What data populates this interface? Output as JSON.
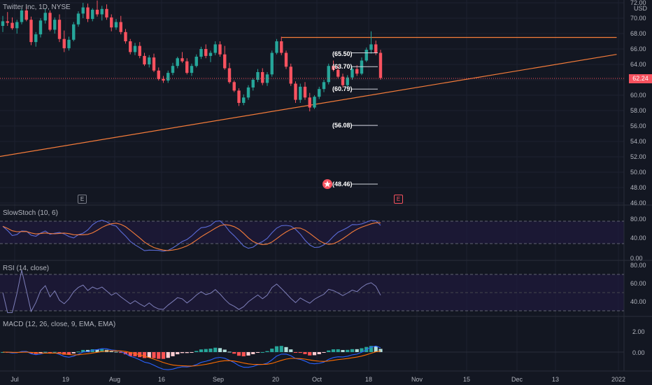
{
  "header": {
    "symbol": "Twitter Inc",
    "interval": "1D",
    "exchange": "NYSE",
    "currency": "USD"
  },
  "price_axis": [
    "72.00",
    "70.00",
    "68.00",
    "66.00",
    "64.00",
    "62.00",
    "60.00",
    "58.00",
    "56.00",
    "54.00",
    "52.00",
    "50.00",
    "48.00",
    "46.00"
  ],
  "current_price": "62.24",
  "levels": [
    "(65.50)",
    "(63.70)",
    "(60.79)",
    "(56.08)",
    "(48.46)"
  ],
  "event_markers": [
    "E",
    "E"
  ],
  "x_axis": [
    "Jul",
    "19",
    "Aug",
    "16",
    "Sep",
    "20",
    "Oct",
    "18",
    "Nov",
    "15",
    "Dec",
    "13",
    "2022"
  ],
  "panes": {
    "stoch": {
      "label": "SlowStoch (10, 6)",
      "axis": [
        "80.00",
        "40.00",
        "0.00"
      ]
    },
    "rsi": {
      "label": "RSI (14, close)",
      "axis": [
        "80.00",
        "60.00",
        "40.00"
      ]
    },
    "macd": {
      "label": "MACD (12, 26, close, 9, EMA, EMA)",
      "axis": [
        "2.00",
        "0.00"
      ]
    }
  },
  "colors": {
    "background": "#131722",
    "up": "#26a69a",
    "down": "#f7525f",
    "trendline": "#f57c3a",
    "stoch_k": "#5b6bd6",
    "stoch_d": "#f57c3a",
    "rsi": "#7e7fba"
  },
  "chart_data": {
    "type": "candlestick",
    "y_range": [
      46,
      72
    ],
    "candles": [
      [
        69.0,
        70.3,
        68.2,
        69.6
      ],
      [
        69.6,
        70.8,
        69.0,
        69.4
      ],
      [
        69.4,
        70.1,
        68.5,
        68.7
      ],
      [
        68.7,
        69.8,
        68.0,
        69.5
      ],
      [
        69.5,
        71.3,
        69.2,
        71.0
      ],
      [
        71.0,
        71.5,
        69.6,
        69.8
      ],
      [
        69.8,
        70.2,
        66.5,
        66.9
      ],
      [
        66.9,
        68.2,
        66.3,
        67.9
      ],
      [
        67.9,
        70.0,
        67.5,
        69.7
      ],
      [
        69.7,
        71.2,
        69.3,
        70.7
      ],
      [
        70.7,
        71.0,
        68.3,
        68.5
      ],
      [
        68.5,
        70.1,
        68.0,
        69.8
      ],
      [
        69.8,
        70.5,
        66.9,
        67.3
      ],
      [
        67.3,
        68.4,
        65.6,
        66.1
      ],
      [
        66.1,
        67.6,
        65.8,
        67.2
      ],
      [
        67.2,
        69.5,
        67.0,
        69.2
      ],
      [
        69.2,
        70.9,
        68.9,
        70.6
      ],
      [
        70.6,
        72.0,
        70.0,
        71.4
      ],
      [
        71.4,
        71.9,
        69.5,
        69.9
      ],
      [
        69.9,
        71.3,
        69.6,
        71.1
      ],
      [
        71.1,
        72.3,
        70.2,
        70.5
      ],
      [
        70.5,
        71.6,
        69.7,
        71.2
      ],
      [
        71.2,
        71.8,
        69.8,
        70.1
      ],
      [
        70.1,
        70.5,
        68.3,
        68.8
      ],
      [
        68.8,
        69.9,
        68.5,
        69.5
      ],
      [
        69.5,
        70.3,
        67.9,
        68.2
      ],
      [
        68.2,
        68.6,
        66.7,
        67.0
      ],
      [
        67.0,
        67.3,
        65.3,
        65.6
      ],
      [
        65.6,
        66.8,
        65.2,
        66.4
      ],
      [
        66.4,
        66.9,
        64.8,
        65.1
      ],
      [
        65.1,
        65.5,
        63.8,
        64.0
      ],
      [
        64.0,
        65.2,
        63.6,
        64.9
      ],
      [
        64.9,
        65.4,
        63.0,
        63.2
      ],
      [
        63.2,
        63.6,
        61.9,
        62.1
      ],
      [
        62.1,
        62.5,
        61.6,
        61.9
      ],
      [
        61.9,
        63.2,
        61.6,
        62.9
      ],
      [
        62.9,
        64.2,
        62.6,
        63.8
      ],
      [
        63.8,
        65.0,
        63.5,
        64.8
      ],
      [
        64.8,
        65.6,
        64.2,
        64.4
      ],
      [
        64.4,
        64.8,
        62.7,
        62.9
      ],
      [
        62.9,
        64.1,
        62.5,
        63.8
      ],
      [
        63.8,
        65.3,
        63.6,
        65.0
      ],
      [
        65.0,
        66.3,
        64.7,
        66.0
      ],
      [
        66.0,
        66.6,
        64.8,
        65.1
      ],
      [
        65.1,
        65.8,
        64.3,
        65.5
      ],
      [
        65.5,
        67.0,
        65.2,
        66.6
      ],
      [
        66.6,
        67.0,
        65.0,
        65.3
      ],
      [
        65.3,
        66.4,
        63.3,
        63.5
      ],
      [
        63.5,
        64.2,
        61.5,
        61.7
      ],
      [
        61.7,
        61.9,
        60.4,
        60.6
      ],
      [
        60.6,
        60.9,
        58.6,
        59.0
      ],
      [
        59.0,
        60.1,
        58.7,
        59.7
      ],
      [
        59.7,
        61.3,
        59.4,
        61.0
      ],
      [
        61.0,
        62.2,
        60.6,
        62.0
      ],
      [
        62.0,
        63.4,
        61.7,
        63.0
      ],
      [
        63.0,
        63.5,
        61.3,
        61.6
      ],
      [
        61.6,
        63.0,
        61.2,
        62.7
      ],
      [
        62.7,
        65.8,
        62.4,
        65.5
      ],
      [
        65.5,
        67.3,
        65.3,
        67.0
      ],
      [
        67.0,
        67.6,
        65.2,
        65.5
      ],
      [
        65.5,
        65.8,
        63.4,
        63.7
      ],
      [
        63.7,
        64.1,
        61.2,
        61.5
      ],
      [
        61.5,
        61.8,
        59.0,
        59.4
      ],
      [
        59.4,
        61.5,
        59.0,
        61.1
      ],
      [
        61.1,
        61.7,
        59.4,
        59.7
      ],
      [
        59.7,
        60.3,
        57.9,
        58.4
      ],
      [
        58.4,
        60.0,
        58.2,
        59.8
      ],
      [
        59.8,
        61.1,
        59.5,
        60.8
      ],
      [
        60.8,
        62.0,
        60.4,
        61.7
      ],
      [
        61.7,
        64.1,
        61.4,
        63.8
      ],
      [
        63.8,
        64.5,
        63.1,
        63.3
      ],
      [
        63.3,
        63.9,
        62.2,
        62.4
      ],
      [
        62.4,
        62.8,
        61.0,
        61.3
      ],
      [
        61.3,
        62.6,
        61.1,
        62.3
      ],
      [
        62.3,
        63.6,
        62.0,
        63.4
      ],
      [
        63.4,
        63.9,
        62.5,
        62.8
      ],
      [
        62.8,
        64.9,
        62.6,
        64.5
      ],
      [
        64.5,
        66.2,
        64.3,
        65.9
      ],
      [
        65.9,
        68.3,
        65.4,
        66.6
      ],
      [
        66.6,
        67.1,
        65.2,
        65.5
      ],
      [
        65.5,
        65.9,
        62.0,
        62.24
      ]
    ],
    "trendlines": [
      {
        "from": {
          "bar": -1,
          "price": 52.0
        },
        "to": {
          "bar": 130,
          "price": 65.3
        }
      },
      {
        "from": {
          "bar": 59,
          "price": 67.5
        },
        "to": {
          "bar": 130,
          "price": 67.5
        }
      }
    ]
  }
}
